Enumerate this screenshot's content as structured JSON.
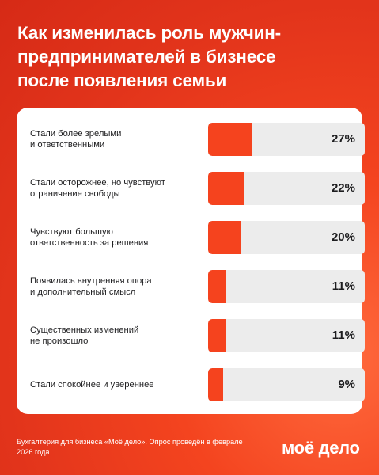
{
  "header": {
    "title_lines": [
      "Как изменилась роль мужчин-",
      "предпринимателей в бизнесе",
      "после появления семьи"
    ]
  },
  "chart_data": {
    "type": "bar",
    "orientation": "horizontal",
    "title": "Как изменилась роль мужчин-предпринимателей в бизнесе после появления семьи",
    "categories": [
      [
        "Стали более зрелыми",
        "и ответственными"
      ],
      [
        "Стали осторожнее, но чувствуют",
        "ограничение свободы"
      ],
      [
        "Чувствуют большую",
        "ответственность за решения"
      ],
      [
        "Появилась внутренняя опора",
        "и дополнительный смысл"
      ],
      [
        "Существенных изменений",
        "не произошло"
      ],
      [
        "Стали спокойнее и увереннее"
      ]
    ],
    "values": [
      27,
      22,
      20,
      11,
      11,
      9
    ],
    "value_labels": [
      "27%",
      "22%",
      "20%",
      "11%",
      "11%",
      "9%"
    ],
    "unit": "%",
    "xlim": [
      0,
      100
    ],
    "grid": false,
    "legend": "none",
    "colors": {
      "bar": "#f5431e",
      "track": "#ececec",
      "background": "#e63a1c"
    }
  },
  "footer": {
    "note_lines": [
      "Бухгалтерия для бизнеса «Моё дело». Опрос проведён в феврале",
      "2026 года"
    ],
    "logo_text": "моё дело"
  }
}
